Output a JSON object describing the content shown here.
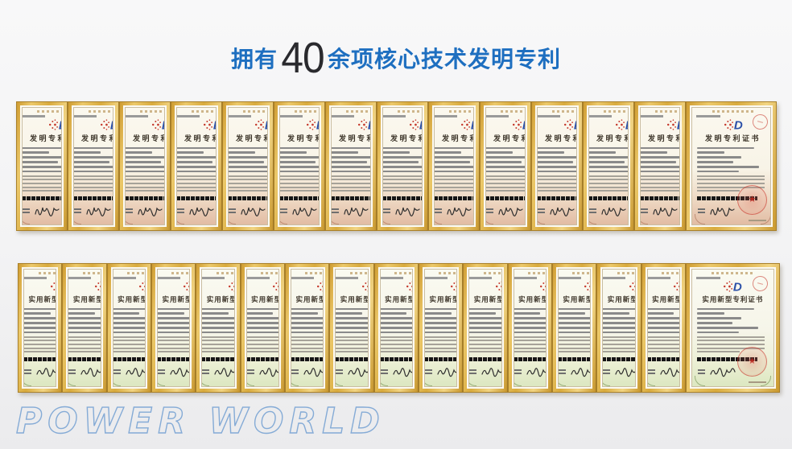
{
  "page": {
    "title": {
      "prefix": "拥有",
      "number": "40",
      "suffix": "余项核心技术发明专利"
    },
    "footer_brand": "POWER WORLD"
  },
  "patent_rows": [
    {
      "id": "invention",
      "certificate_title": "发明专利证书",
      "narrow_visible_title": "发明专利",
      "narrow_count": 13,
      "wide_count": 1,
      "total_certificates": 14
    },
    {
      "id": "utility-model",
      "certificate_title": "实用新型专利证书",
      "narrow_visible_title": "实用新型",
      "narrow_count": 15,
      "wide_count": 1,
      "total_certificates": 16
    }
  ],
  "colors": {
    "title_blue": "#1e6fc0",
    "title_number_dark": "#2a2a2e",
    "frame_gold": "#d9ab3e",
    "paper_cream": "#f9f6ec",
    "invention_tint": "#e2bca4",
    "utility_tint": "#dce7c1",
    "seal_red": "#c5392c",
    "logo_blue": "#2b50a8",
    "brand_outline_blue": "#85abd6"
  }
}
